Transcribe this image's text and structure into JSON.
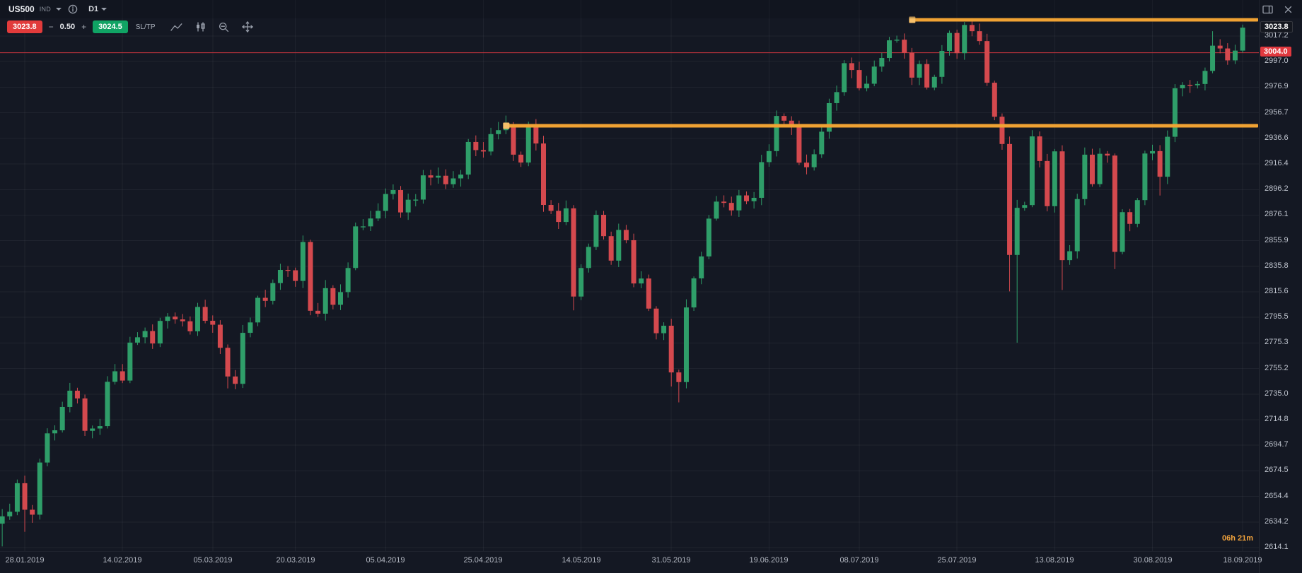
{
  "window": {
    "symbol": "US500",
    "instrument_type": "IND",
    "timeframe": "D1"
  },
  "trade_panel": {
    "sell_price": "3023.8",
    "volume": "0.50",
    "buy_price": "3024.5",
    "sltp_label": "SL/TP",
    "decrease_label": "−",
    "increase_label": "+"
  },
  "icons": [
    "symbol-dropdown-caret",
    "info-icon",
    "timeframe-caret",
    "panel-icon",
    "close-icon",
    "trendline-icon",
    "candlestick-icon",
    "zoom-out-icon",
    "crosshair-icon"
  ],
  "colors": {
    "background": "#141823",
    "bull": "#2f9e69",
    "bear": "#d4494e",
    "grid": "rgba(255,255,255,0.05)",
    "orange_line": "#f0a233",
    "orange_handle": "#f7c06a",
    "red_line": "#c9353f",
    "sell_badge": "#e23b3b",
    "buy_badge": "#10a364",
    "countdown": "#f2a33c"
  },
  "chart_data": {
    "type": "candlestick",
    "title": "US500 daily candlestick chart",
    "symbol": "US500",
    "timeframe": "D1",
    "countdown": "06h 21m",
    "price_axis": {
      "last_price": "3023.8",
      "alert_price": "3004.0",
      "tick_labels": [
        3017.2,
        2997.0,
        2976.9,
        2956.7,
        2936.6,
        2916.4,
        2896.2,
        2876.1,
        2855.9,
        2835.8,
        2815.6,
        2795.5,
        2775.3,
        2755.2,
        2735.0,
        2714.8,
        2694.7,
        2674.5,
        2654.4,
        2634.2,
        2614.1
      ],
      "range": [
        2614.1,
        3030.0
      ]
    },
    "time_axis": {
      "tick_labels": [
        "28.01.2019",
        "14.02.2019",
        "05.03.2019",
        "20.03.2019",
        "05.04.2019",
        "25.04.2019",
        "14.05.2019",
        "31.05.2019",
        "19.06.2019",
        "08.07.2019",
        "25.07.2019",
        "13.08.2019",
        "30.08.2019",
        "18.09.2019"
      ],
      "tick_indices": [
        4,
        17,
        29,
        40,
        52,
        65,
        78,
        90,
        103,
        115,
        128,
        141,
        154,
        166
      ]
    },
    "levels": {
      "alert_line": 3004.0,
      "upper_resistance": {
        "price": 3030.0,
        "start_index": 122
      },
      "lower_resistance": {
        "price": 2946.5,
        "start_index": 68
      }
    },
    "candles": {
      "first_open": 2625.0,
      "closes": [
        2632.9,
        2638.7,
        2642.3,
        2664.8,
        2643.9,
        2640.0,
        2681.1,
        2704.1,
        2706.5,
        2724.9,
        2737.7,
        2731.6,
        2706.1,
        2707.9,
        2709.8,
        2744.7,
        2753.0,
        2745.7,
        2775.6,
        2779.8,
        2784.7,
        2774.9,
        2792.7,
        2796.1,
        2793.9,
        2792.4,
        2784.5,
        2803.7,
        2792.8,
        2789.7,
        2771.5,
        2748.9,
        2743.1,
        2783.3,
        2791.5,
        2810.9,
        2808.5,
        2822.5,
        2832.9,
        2832.6,
        2824.2,
        2854.9,
        2800.7,
        2798.4,
        2818.5,
        2805.4,
        2815.4,
        2834.4,
        2867.2,
        2867.2,
        2873.4,
        2879.4,
        2892.7,
        2895.8,
        2878.2,
        2888.2,
        2888.3,
        2907.4,
        2905.6,
        2907.1,
        2900.4,
        2905.0,
        2908.0,
        2933.7,
        2927.3,
        2926.2,
        2939.9,
        2943.0,
        2945.8,
        2923.7,
        2917.5,
        2945.6,
        2932.5,
        2884.1,
        2879.4,
        2870.7,
        2881.4,
        2811.9,
        2834.4,
        2851.0,
        2876.3,
        2859.5,
        2840.2,
        2864.4,
        2856.3,
        2822.2,
        2826.1,
        2802.4,
        2783.0,
        2788.9,
        2752.1,
        2744.5,
        2803.3,
        2826.2,
        2843.5,
        2873.3,
        2886.7,
        2885.7,
        2879.8,
        2891.6,
        2887.0,
        2889.7,
        2917.8,
        2926.5,
        2954.2,
        2950.5,
        2945.4,
        2917.4,
        2913.8,
        2924.0,
        2941.8,
        2964.3,
        2973.0,
        2995.8,
        2990.4,
        2976.0,
        2979.6,
        2993.1,
        2999.9,
        3013.8,
        3014.3,
        3004.0,
        2984.4,
        2995.1,
        2976.6,
        2985.0,
        3005.5,
        3019.6,
        3003.7,
        3025.9,
        3021.0,
        3013.2,
        2980.4,
        2953.6,
        2932.1,
        2844.7,
        2881.8,
        2884.0,
        2938.1,
        2918.7,
        2883.1,
        2926.3,
        2840.6,
        2847.6,
        2888.7,
        2923.7,
        2900.5,
        2924.4,
        2923.0,
        2847.1,
        2878.4,
        2869.2,
        2887.9,
        2924.6,
        2926.5,
        2906.3,
        2937.8,
        2976.0,
        2978.7,
        2978.4,
        2979.4,
        2989.7,
        3009.6,
        3007.4,
        2998.0,
        3005.7,
        3023.8
      ],
      "high_overrides": {
        "41": 2860.0,
        "63": 2936.0,
        "68": 2954.5,
        "104": 2958.5,
        "113": 2998.2,
        "120": 3017.5,
        "127": 3021.5,
        "129": 3028.3,
        "138": 2943.0,
        "162": 3021.0,
        "166": 3026.2
      },
      "low_overrides": {
        "1": 2615.0,
        "4": 2626.5,
        "31": 2739.5,
        "77": 2801.0,
        "90": 2741.0,
        "91": 2728.5,
        "135": 2816.0,
        "136": 2775.5,
        "142": 2817.0,
        "149": 2833.5,
        "155": 2891.5
      }
    }
  }
}
